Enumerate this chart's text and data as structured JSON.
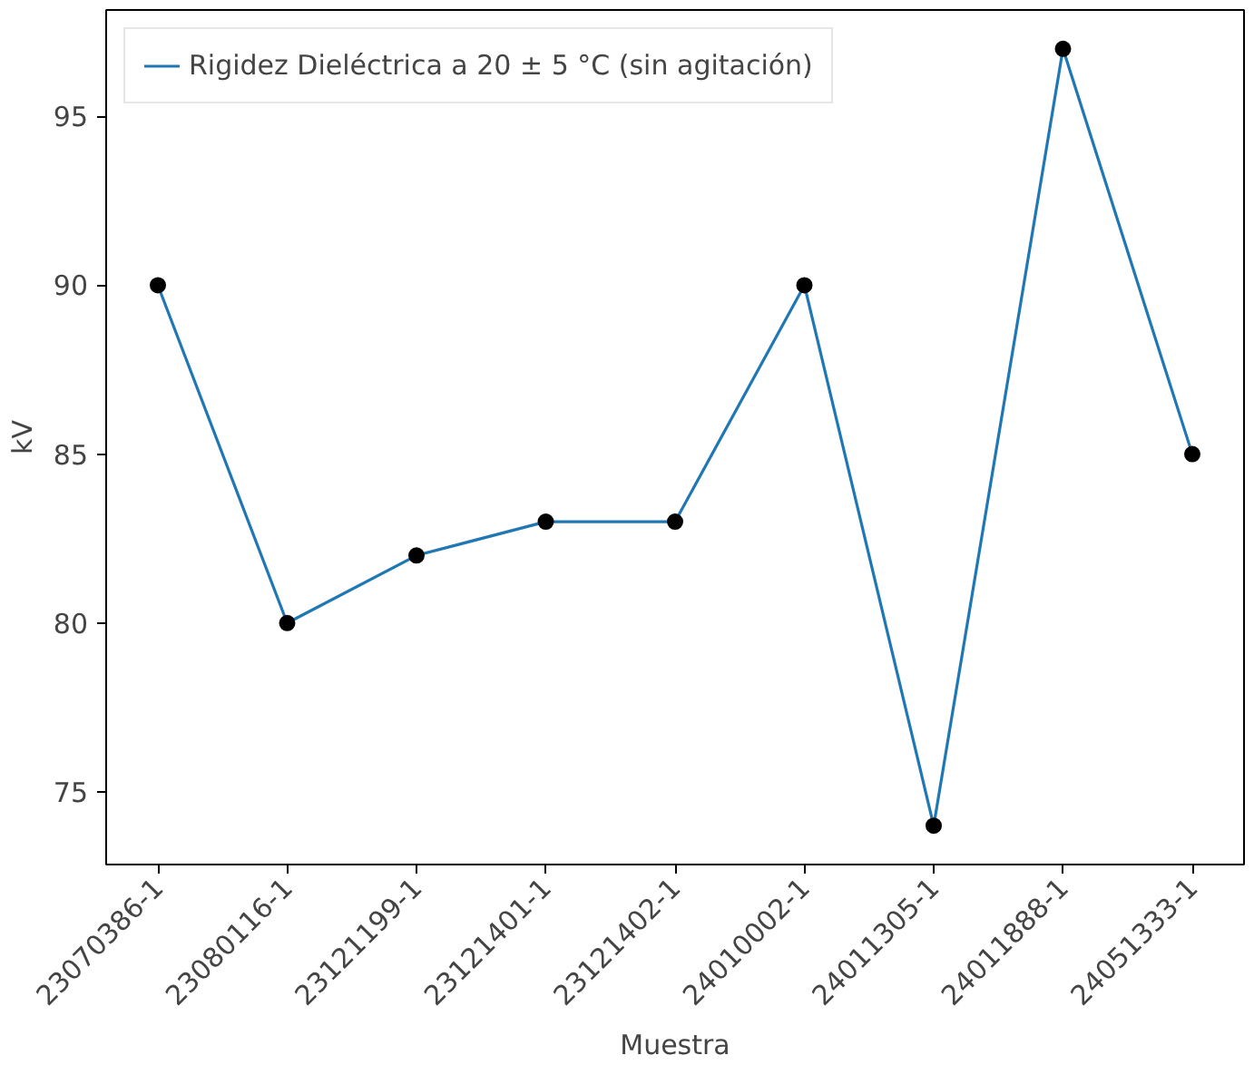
{
  "chart_data": {
    "type": "line",
    "xlabel": "Muestra",
    "ylabel": "kV",
    "categories": [
      "23070386-1",
      "23080116-1",
      "23121199-1",
      "23121401-1",
      "23121402-1",
      "24010002-1",
      "24011305-1",
      "24011888-1",
      "24051333-1"
    ],
    "series": [
      {
        "name": "Rigidez Dieléctrica a 20 ± 5 °C (sin agitación)",
        "color": "#1f77b4",
        "values": [
          90,
          80,
          82,
          83,
          83,
          90,
          74,
          97,
          85
        ]
      },
      {
        "type": "scatter",
        "marker": "circle",
        "color": "#000000",
        "values": [
          90,
          80,
          82,
          83,
          83,
          90,
          74,
          97,
          85
        ]
      }
    ],
    "ylim": [
      72.85,
      98.15
    ],
    "yticks": [
      75,
      80,
      85,
      90,
      95
    ],
    "grid": false,
    "legend": "top left"
  }
}
